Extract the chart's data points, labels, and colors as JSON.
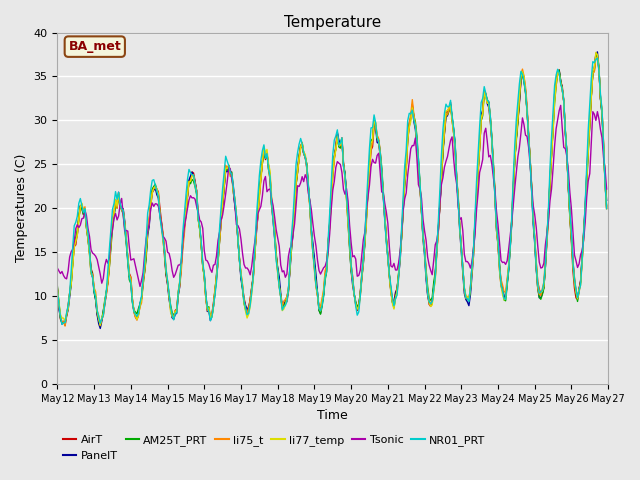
{
  "title": "Temperature",
  "xlabel": "Time",
  "ylabel": "Temperatures (C)",
  "ylim": [
    0,
    40
  ],
  "background_color": "#e0e0e0",
  "plot_bg_color": "#e8e8e8",
  "annotation_text": "BA_met",
  "annotation_color": "#8b0000",
  "annotation_bg": "#f5f5dc",
  "annotation_border": "#8b4513",
  "series_order": [
    "AirT",
    "PanelT",
    "AM25T_PRT",
    "li75_t",
    "li77_temp",
    "Tsonic",
    "NR01_PRT"
  ],
  "series": {
    "AirT": {
      "color": "#cc0000",
      "lw": 1.0
    },
    "PanelT": {
      "color": "#000099",
      "lw": 1.0
    },
    "AM25T_PRT": {
      "color": "#00aa00",
      "lw": 1.0
    },
    "li75_t": {
      "color": "#ff8800",
      "lw": 1.0
    },
    "li77_temp": {
      "color": "#dddd00",
      "lw": 1.0
    },
    "Tsonic": {
      "color": "#aa00aa",
      "lw": 1.0
    },
    "NR01_PRT": {
      "color": "#00cccc",
      "lw": 1.0
    }
  },
  "x_tick_labels": [
    "May 12",
    "May 13",
    "May 14",
    "May 15",
    "May 16",
    "May 17",
    "May 18",
    "May 19",
    "May 20",
    "May 21",
    "May 22",
    "May 23",
    "May 24",
    "May 25",
    "May 26",
    "May 27"
  ],
  "x_tick_positions": [
    0,
    24,
    48,
    72,
    96,
    120,
    144,
    168,
    192,
    216,
    240,
    264,
    288,
    312,
    336,
    360
  ],
  "yticks": [
    0,
    5,
    10,
    15,
    20,
    25,
    30,
    35,
    40
  ],
  "legend_order": [
    "AirT",
    "PanelT",
    "AM25T_PRT",
    "li75_t",
    "li77_temp",
    "Tsonic",
    "NR01_PRT"
  ]
}
